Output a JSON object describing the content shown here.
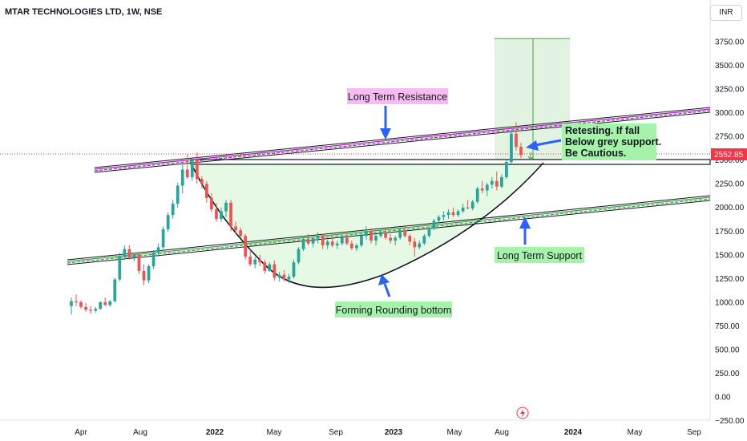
{
  "symbol_title": "MTAR TECHNOLOGIES LTD, 1W, NSE",
  "currency": "INR",
  "colors": {
    "up": "#26a69a",
    "down": "#ef5350",
    "resistance": "#9c27b0",
    "support": "#43a047",
    "resistance_label_bg": "#f8bbf1",
    "label_bg": "#a5f3a8",
    "bowl_fill": "#e6f9e4",
    "target_fill": "#e3f3e1",
    "arrow": "#2962ff",
    "last_price_bg": "#f23645"
  },
  "icon": "lightning-icon",
  "chart_data": {
    "type": "candlestick",
    "xlabel": "",
    "ylabel": "",
    "ylim": [
      -250,
      3900
    ],
    "y_ticks": [
      "3750.00",
      "3500.00",
      "3250.00",
      "3000.00",
      "2750.00",
      "2500.00",
      "2250.00",
      "2000.00",
      "1750.00",
      "1500.00",
      "1250.00",
      "1000.00",
      "750.00",
      "500.00",
      "250.00",
      "0.00",
      "−250.00"
    ],
    "x_ticks": [
      "Apr",
      "Aug",
      "2022",
      "May",
      "Sep",
      "2023",
      "May",
      "Aug",
      "2024",
      "May",
      "Sep"
    ],
    "last_price": "2552.85",
    "candles": [
      [
        960,
        1050,
        870,
        1010
      ],
      [
        1010,
        1080,
        960,
        1000
      ],
      [
        1000,
        1020,
        930,
        950
      ],
      [
        950,
        990,
        900,
        920
      ],
      [
        920,
        960,
        880,
        910
      ],
      [
        910,
        950,
        890,
        930
      ],
      [
        930,
        1010,
        920,
        1000
      ],
      [
        1000,
        1050,
        960,
        970
      ],
      [
        970,
        1020,
        950,
        1010
      ],
      [
        1010,
        1260,
        1000,
        1240
      ],
      [
        1240,
        1520,
        1220,
        1480
      ],
      [
        1480,
        1600,
        1450,
        1560
      ],
      [
        1560,
        1600,
        1450,
        1470
      ],
      [
        1470,
        1520,
        1430,
        1500
      ],
      [
        1500,
        1530,
        1300,
        1330
      ],
      [
        1330,
        1400,
        1180,
        1230
      ],
      [
        1230,
        1400,
        1200,
        1380
      ],
      [
        1380,
        1550,
        1350,
        1520
      ],
      [
        1520,
        1620,
        1480,
        1580
      ],
      [
        1580,
        1800,
        1560,
        1770
      ],
      [
        1770,
        1950,
        1740,
        1920
      ],
      [
        1920,
        2080,
        1880,
        2040
      ],
      [
        2040,
        2260,
        2000,
        2230
      ],
      [
        2230,
        2450,
        2150,
        2400
      ],
      [
        2400,
        2560,
        2300,
        2320
      ],
      [
        2320,
        2520,
        2280,
        2500
      ],
      [
        2500,
        2580,
        2250,
        2300
      ],
      [
        2300,
        2330,
        2200,
        2250
      ],
      [
        2250,
        2280,
        2050,
        2100
      ],
      [
        2100,
        2150,
        1950,
        1980
      ],
      [
        1980,
        2050,
        1850,
        1880
      ],
      [
        1880,
        2000,
        1850,
        1960
      ],
      [
        1960,
        2080,
        1900,
        2050
      ],
      [
        2050,
        2080,
        1750,
        1800
      ],
      [
        1800,
        1850,
        1720,
        1760
      ],
      [
        1760,
        1790,
        1680,
        1700
      ],
      [
        1700,
        1720,
        1450,
        1480
      ],
      [
        1480,
        1560,
        1380,
        1400
      ],
      [
        1400,
        1480,
        1360,
        1450
      ],
      [
        1450,
        1500,
        1380,
        1420
      ],
      [
        1420,
        1450,
        1300,
        1330
      ],
      [
        1330,
        1420,
        1320,
        1400
      ],
      [
        1400,
        1440,
        1230,
        1260
      ],
      [
        1260,
        1320,
        1220,
        1290
      ],
      [
        1290,
        1340,
        1220,
        1240
      ],
      [
        1240,
        1300,
        1200,
        1270
      ],
      [
        1270,
        1450,
        1250,
        1420
      ],
      [
        1420,
        1580,
        1400,
        1560
      ],
      [
        1560,
        1700,
        1540,
        1660
      ],
      [
        1660,
        1720,
        1600,
        1620
      ],
      [
        1620,
        1690,
        1580,
        1670
      ],
      [
        1670,
        1740,
        1620,
        1700
      ],
      [
        1700,
        1720,
        1560,
        1600
      ],
      [
        1600,
        1660,
        1560,
        1640
      ],
      [
        1640,
        1680,
        1580,
        1600
      ],
      [
        1600,
        1650,
        1560,
        1620
      ],
      [
        1620,
        1700,
        1600,
        1680
      ],
      [
        1680,
        1710,
        1600,
        1620
      ],
      [
        1620,
        1650,
        1550,
        1570
      ],
      [
        1570,
        1620,
        1540,
        1600
      ],
      [
        1600,
        1720,
        1580,
        1700
      ],
      [
        1700,
        1800,
        1660,
        1750
      ],
      [
        1750,
        1780,
        1620,
        1650
      ],
      [
        1650,
        1720,
        1600,
        1700
      ],
      [
        1700,
        1760,
        1680,
        1740
      ],
      [
        1740,
        1760,
        1660,
        1680
      ],
      [
        1680,
        1720,
        1620,
        1650
      ],
      [
        1650,
        1700,
        1600,
        1680
      ],
      [
        1680,
        1790,
        1660,
        1760
      ],
      [
        1760,
        1800,
        1680,
        1700
      ],
      [
        1700,
        1720,
        1600,
        1640
      ],
      [
        1640,
        1680,
        1480,
        1580
      ],
      [
        1580,
        1650,
        1560,
        1620
      ],
      [
        1620,
        1720,
        1600,
        1700
      ],
      [
        1700,
        1800,
        1680,
        1780
      ],
      [
        1780,
        1880,
        1760,
        1860
      ],
      [
        1860,
        1920,
        1820,
        1900
      ],
      [
        1900,
        1960,
        1860,
        1920
      ],
      [
        1920,
        1980,
        1880,
        1950
      ],
      [
        1950,
        2000,
        1900,
        1920
      ],
      [
        1920,
        1980,
        1900,
        1960
      ],
      [
        1960,
        2040,
        1940,
        2000
      ],
      [
        2000,
        2080,
        1980,
        1990
      ],
      [
        1990,
        2080,
        1970,
        2060
      ],
      [
        2060,
        2220,
        2040,
        2200
      ],
      [
        2200,
        2280,
        2150,
        2180
      ],
      [
        2180,
        2260,
        2120,
        2240
      ],
      [
        2240,
        2320,
        2200,
        2280
      ],
      [
        2280,
        2380,
        2180,
        2220
      ],
      [
        2220,
        2350,
        2200,
        2320
      ],
      [
        2320,
        2500,
        2300,
        2480
      ],
      [
        2480,
        2820,
        2460,
        2780
      ],
      [
        2780,
        2900,
        2600,
        2640
      ],
      [
        2640,
        2680,
        2520,
        2553
      ]
    ],
    "annotations": [
      {
        "label": "Long Term Resistance"
      },
      {
        "label": "Long Term Support"
      },
      {
        "label": "Forming Rounding bottom"
      },
      {
        "label": "Retesting. If fall Below grey support. Be Cautious."
      }
    ]
  }
}
